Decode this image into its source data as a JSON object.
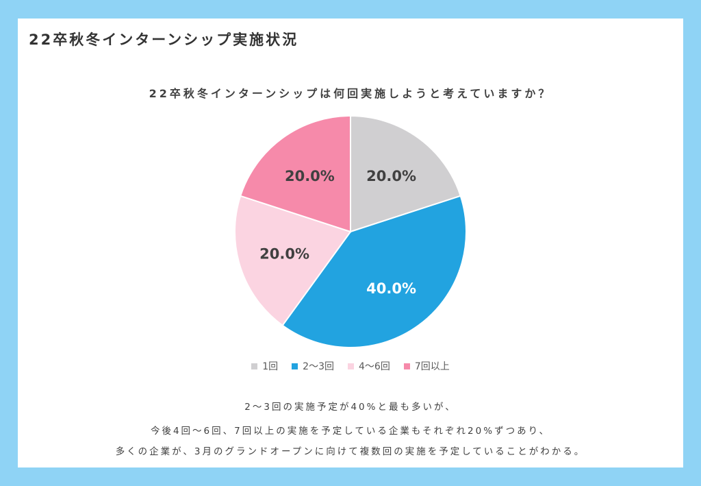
{
  "header": {
    "title": "22卒秋冬インターンシップ実施状況"
  },
  "chart_data": {
    "type": "pie",
    "title": "22卒秋冬インターンシップは何回実施しようと考えていますか？",
    "categories": [
      "1回",
      "2〜3回",
      "4〜6回",
      "7回以上"
    ],
    "values": [
      20.0,
      40.0,
      20.0,
      20.0
    ],
    "data_labels": [
      "20.0%",
      "40.0%",
      "20.0%",
      "20.0%"
    ],
    "colors": [
      "#d0cfd1",
      "#22a3e0",
      "#fbd4e1",
      "#f68aaa"
    ],
    "label_colors": [
      "#404040",
      "#ffffff",
      "#404040",
      "#404040"
    ],
    "legend_placement": "bottom"
  },
  "summary": {
    "line1": "2～3回の実施予定が40%と最も多いが、",
    "line2": "今後4回～6回、7回以上の実施を予定している企業もそれぞれ20%ずつあり、",
    "line3": "多くの企業が、3月のグランドオープンに向けて複数回の実施を予定していることがわかる。"
  }
}
